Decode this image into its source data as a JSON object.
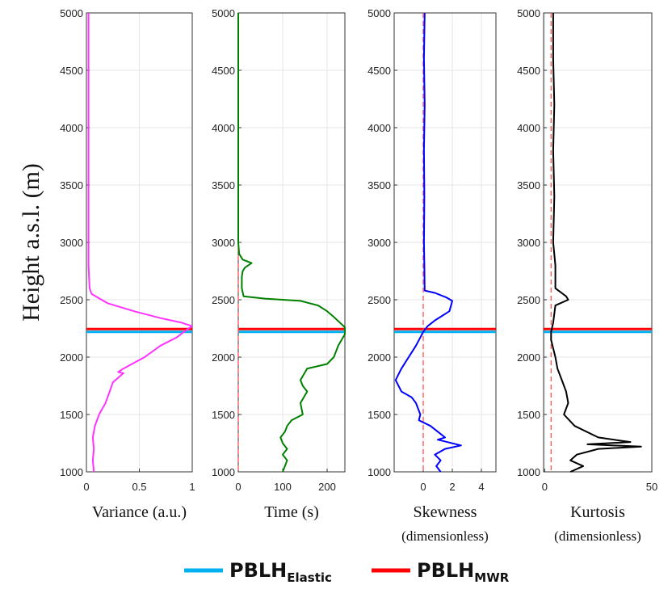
{
  "chart_data": {
    "type": "line",
    "ylabel": "Height a.s.l. (m)",
    "ylim": [
      1000,
      5000
    ],
    "y_ticks": [
      "1000",
      "1500",
      "2000",
      "2500",
      "3000",
      "3500",
      "4000",
      "4500",
      "5000"
    ],
    "pblh": {
      "elastic": 2220,
      "mwr": 2245
    },
    "legend": [
      {
        "base": "PBLH",
        "sub": "Elastic",
        "color": "#00b0f0"
      },
      {
        "base": "PBLH",
        "sub": "MWR",
        "color": "#ff0000"
      }
    ],
    "panels": [
      {
        "xlabel": "Variance (a.u.)",
        "xlabel2": "",
        "xlim": [
          0,
          1
        ],
        "x_ticks": [
          0,
          0.5,
          1
        ],
        "x_tick_labels": [
          "0",
          "0.5",
          "1"
        ],
        "color": "#ff33ff",
        "ref_line": null,
        "series": [
          [
            0.02,
            5000
          ],
          [
            0.02,
            4800
          ],
          [
            0.02,
            4600
          ],
          [
            0.02,
            4400
          ],
          [
            0.02,
            4200
          ],
          [
            0.02,
            4000
          ],
          [
            0.02,
            3800
          ],
          [
            0.02,
            3600
          ],
          [
            0.02,
            3400
          ],
          [
            0.02,
            3200
          ],
          [
            0.02,
            3000
          ],
          [
            0.02,
            2800
          ],
          [
            0.03,
            2600
          ],
          [
            0.05,
            2550
          ],
          [
            0.2,
            2470
          ],
          [
            0.45,
            2400
          ],
          [
            0.7,
            2340
          ],
          [
            0.9,
            2300
          ],
          [
            1.0,
            2270
          ],
          [
            0.95,
            2240
          ],
          [
            0.85,
            2170
          ],
          [
            0.7,
            2100
          ],
          [
            0.55,
            2000
          ],
          [
            0.45,
            1950
          ],
          [
            0.35,
            1900
          ],
          [
            0.3,
            1870
          ],
          [
            0.35,
            1860
          ],
          [
            0.25,
            1780
          ],
          [
            0.22,
            1700
          ],
          [
            0.18,
            1600
          ],
          [
            0.12,
            1500
          ],
          [
            0.08,
            1400
          ],
          [
            0.06,
            1300
          ],
          [
            0.07,
            1200
          ],
          [
            0.06,
            1100
          ],
          [
            0.07,
            1000
          ]
        ]
      },
      {
        "xlabel": "Time (s)",
        "xlabel2": "",
        "xlim": [
          0,
          240
        ],
        "x_ticks": [
          0,
          100,
          200
        ],
        "x_tick_labels": [
          "0",
          "100",
          "200"
        ],
        "color": "#008000",
        "ref_line": 0,
        "series": [
          [
            0,
            5000
          ],
          [
            0,
            4500
          ],
          [
            0,
            4000
          ],
          [
            0,
            3500
          ],
          [
            0,
            3000
          ],
          [
            2,
            2900
          ],
          [
            10,
            2850
          ],
          [
            30,
            2820
          ],
          [
            15,
            2780
          ],
          [
            10,
            2750
          ],
          [
            8,
            2700
          ],
          [
            8,
            2600
          ],
          [
            12,
            2530
          ],
          [
            60,
            2510
          ],
          [
            140,
            2490
          ],
          [
            180,
            2450
          ],
          [
            200,
            2400
          ],
          [
            215,
            2350
          ],
          [
            240,
            2260
          ],
          [
            240,
            2200
          ],
          [
            225,
            2100
          ],
          [
            215,
            2000
          ],
          [
            200,
            1940
          ],
          [
            155,
            1900
          ],
          [
            140,
            1800
          ],
          [
            145,
            1750
          ],
          [
            155,
            1700
          ],
          [
            140,
            1600
          ],
          [
            145,
            1500
          ],
          [
            120,
            1450
          ],
          [
            110,
            1400
          ],
          [
            105,
            1350
          ],
          [
            95,
            1300
          ],
          [
            100,
            1250
          ],
          [
            110,
            1200
          ],
          [
            100,
            1150
          ],
          [
            110,
            1100
          ],
          [
            100,
            1000
          ]
        ]
      },
      {
        "xlabel": "Skewness",
        "xlabel2": "(dimensionless)",
        "xlim": [
          -2,
          5
        ],
        "x_ticks": [
          0,
          2,
          4
        ],
        "x_tick_labels": [
          "0",
          "2",
          "4"
        ],
        "color": "#0000ff",
        "ref_line": 0,
        "series": [
          [
            0.1,
            5000
          ],
          [
            0.05,
            4600
          ],
          [
            0.1,
            4200
          ],
          [
            0.05,
            3800
          ],
          [
            0.08,
            3400
          ],
          [
            0.05,
            3000
          ],
          [
            0.08,
            2800
          ],
          [
            0.1,
            2580
          ],
          [
            0.8,
            2560
          ],
          [
            1.6,
            2520
          ],
          [
            2.0,
            2490
          ],
          [
            1.8,
            2400
          ],
          [
            0.8,
            2320
          ],
          [
            0.3,
            2270
          ],
          [
            0,
            2220
          ],
          [
            -0.5,
            2100
          ],
          [
            -1.0,
            2000
          ],
          [
            -1.5,
            1900
          ],
          [
            -1.9,
            1800
          ],
          [
            -1.5,
            1700
          ],
          [
            -0.8,
            1650
          ],
          [
            -0.5,
            1600
          ],
          [
            -0.2,
            1500
          ],
          [
            -0.3,
            1450
          ],
          [
            0.5,
            1400
          ],
          [
            1.0,
            1350
          ],
          [
            1.5,
            1300
          ],
          [
            1.0,
            1280
          ],
          [
            2.6,
            1230
          ],
          [
            1.5,
            1200
          ],
          [
            0.8,
            1150
          ],
          [
            1.2,
            1100
          ],
          [
            0.9,
            1050
          ],
          [
            1.2,
            1000
          ]
        ]
      },
      {
        "xlabel": "Kurtosis",
        "xlabel2": "(dimensionless)",
        "xlim": [
          -0.5,
          50
        ],
        "x_ticks": [
          0,
          50
        ],
        "x_tick_labels": [
          "0",
          "50"
        ],
        "color": "#000000",
        "ref_line": 3,
        "series": [
          [
            4,
            5000
          ],
          [
            4,
            4600
          ],
          [
            4.5,
            4200
          ],
          [
            4,
            3800
          ],
          [
            4.5,
            3400
          ],
          [
            4,
            3000
          ],
          [
            5,
            2800
          ],
          [
            5,
            2600
          ],
          [
            10,
            2530
          ],
          [
            11,
            2500
          ],
          [
            5,
            2450
          ],
          [
            4,
            2300
          ],
          [
            3,
            2220
          ],
          [
            3,
            2150
          ],
          [
            5,
            2000
          ],
          [
            6,
            1900
          ],
          [
            8,
            1800
          ],
          [
            10,
            1700
          ],
          [
            11,
            1600
          ],
          [
            9,
            1500
          ],
          [
            14,
            1400
          ],
          [
            25,
            1300
          ],
          [
            40,
            1260
          ],
          [
            20,
            1240
          ],
          [
            45,
            1220
          ],
          [
            25,
            1200
          ],
          [
            15,
            1150
          ],
          [
            12,
            1100
          ],
          [
            18,
            1050
          ],
          [
            12,
            1000
          ]
        ]
      }
    ]
  }
}
